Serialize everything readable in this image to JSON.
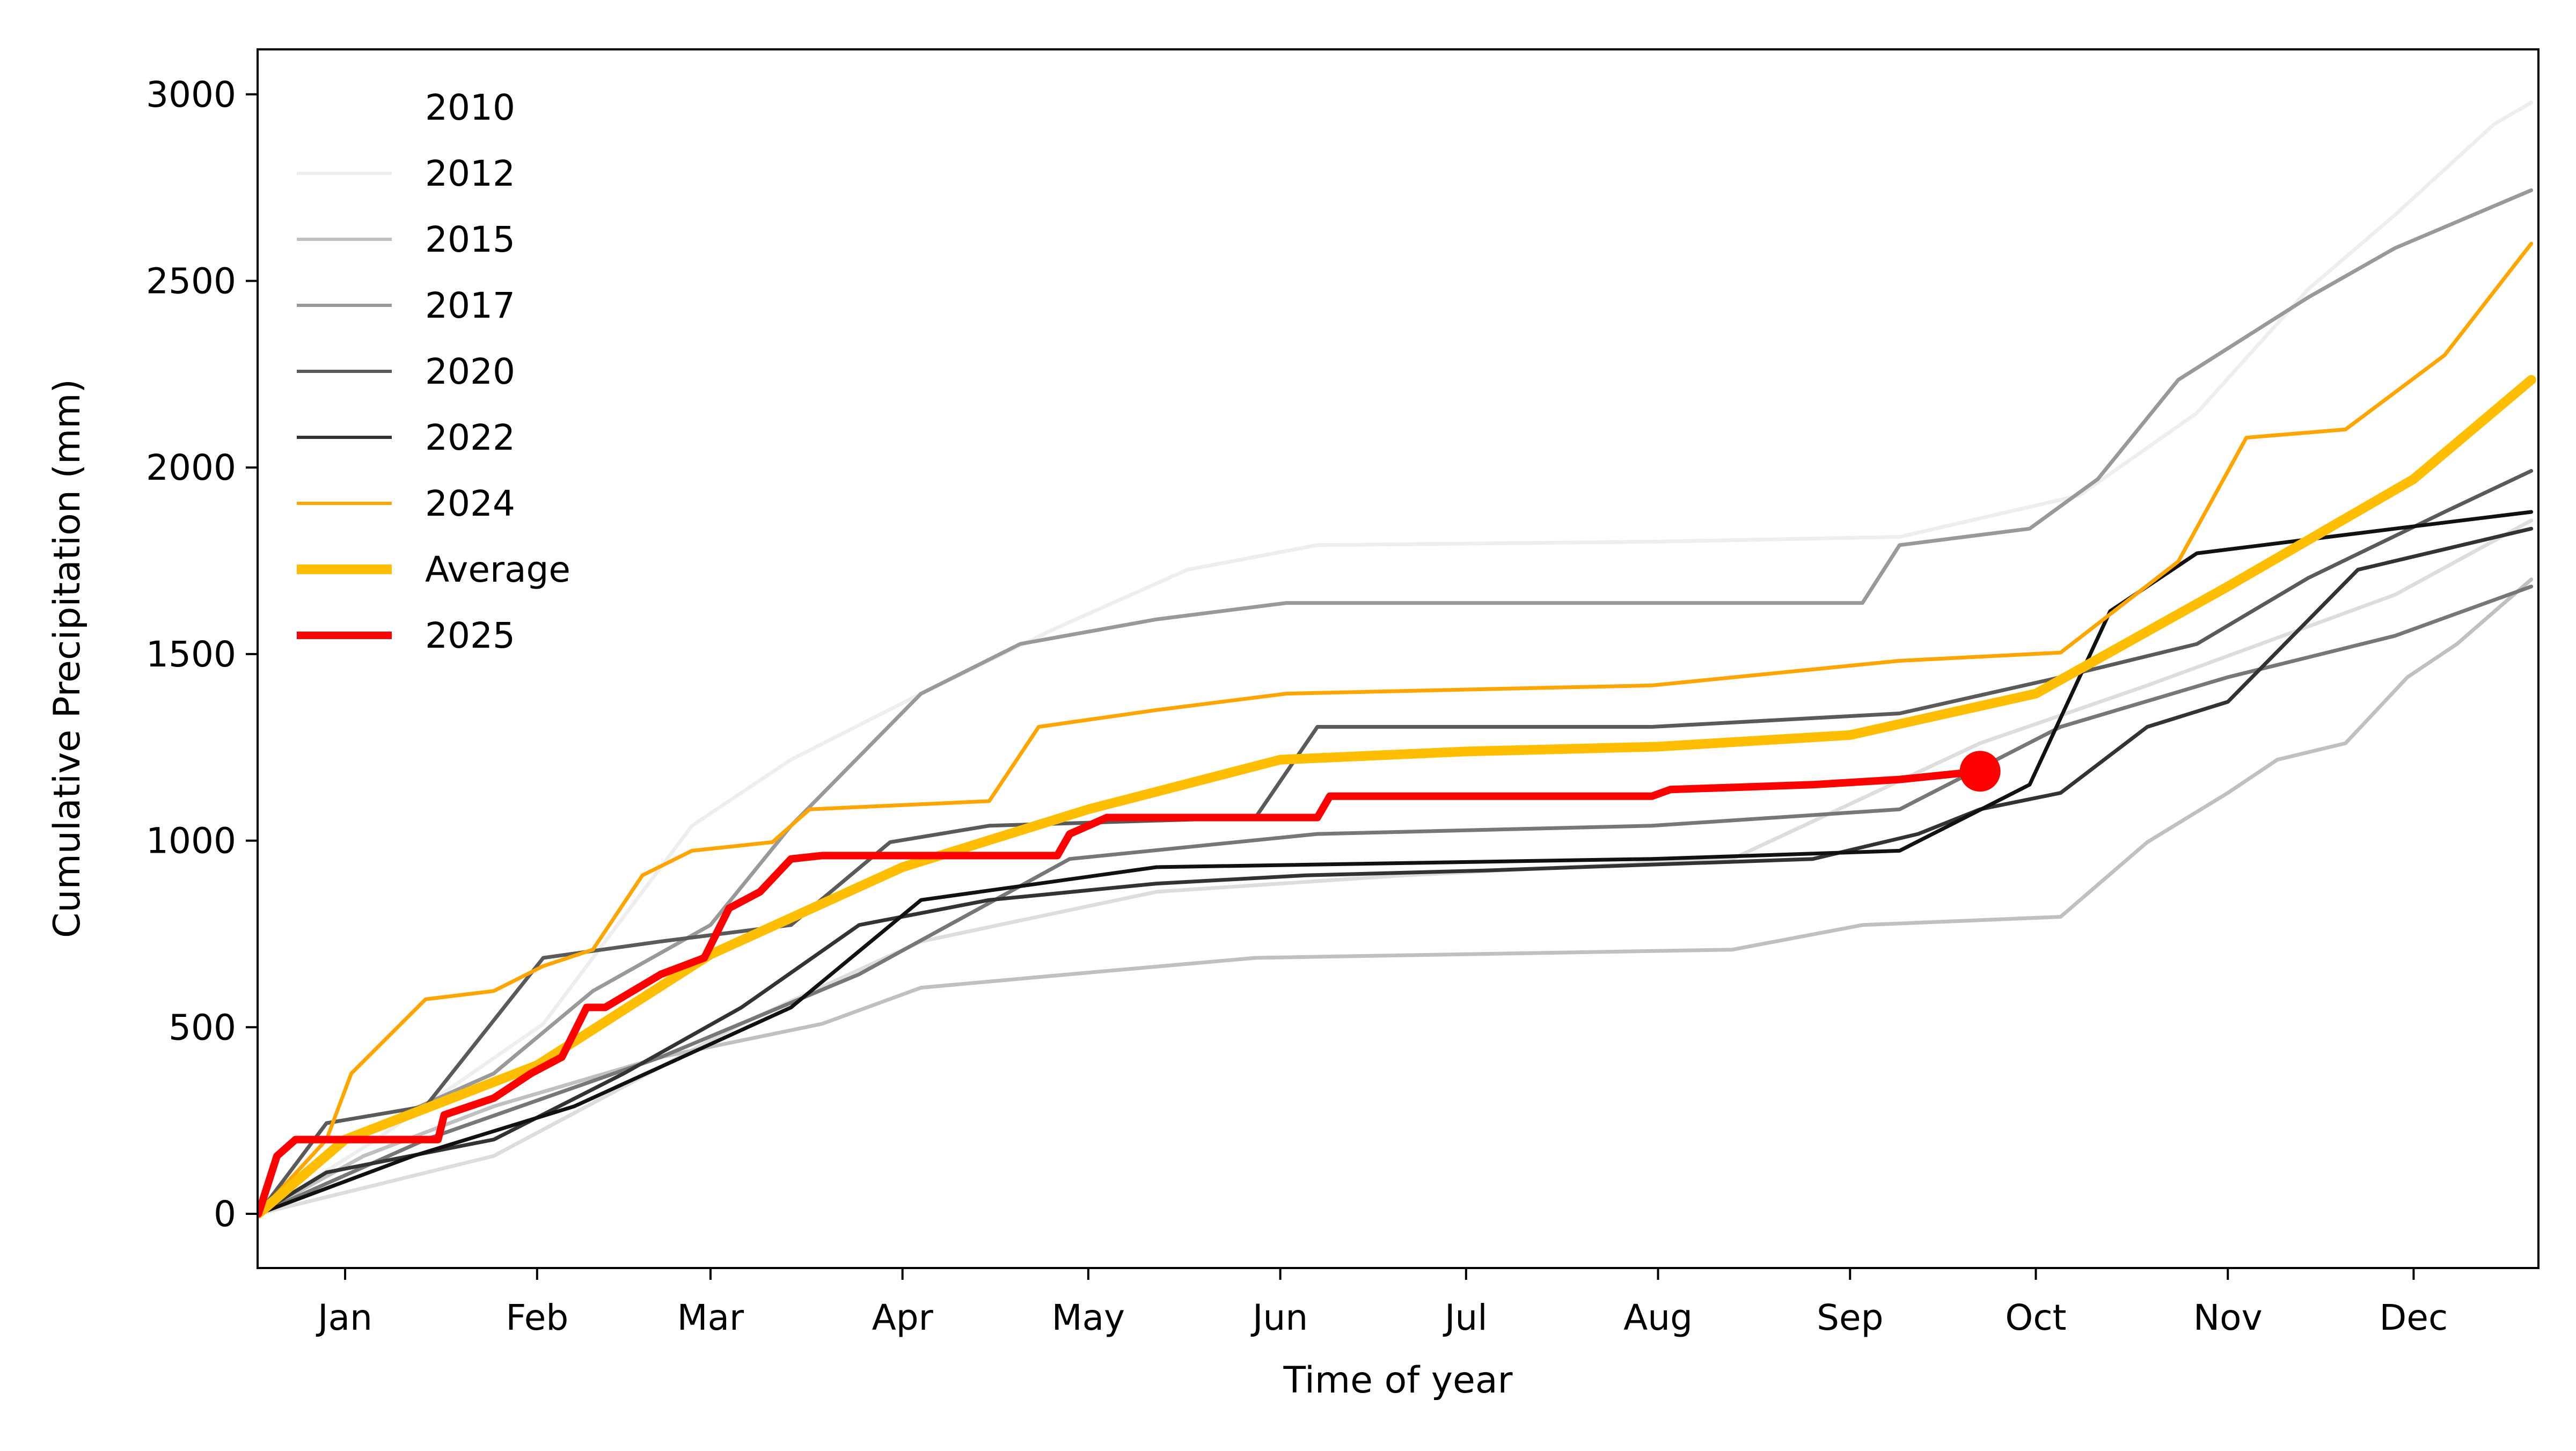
{
  "chart_data": {
    "type": "line",
    "title": "",
    "xlabel": "Time of year",
    "ylabel": "Cumulative Precipitation (mm)",
    "ylim": [
      -146,
      3120
    ],
    "xlim": [
      "Jan 01",
      "Dec 31"
    ],
    "x_ticks": [
      "Jan 15",
      "Feb 15",
      "Mar 15",
      "Apr 15",
      "May 15",
      "Jun 15",
      "Jul 15",
      "Aug 15",
      "Sep 15",
      "Oct 15",
      "Nov 15",
      "Dec 15"
    ],
    "x_tick_labels": [
      "Jan",
      "Feb",
      "Mar",
      "Apr",
      "May",
      "Jun",
      "Jul",
      "Aug",
      "Sep",
      "Oct",
      "Nov",
      "Dec"
    ],
    "y_ticks": [
      0,
      500,
      1000,
      1500,
      2000,
      2500,
      3000
    ],
    "y_tick_labels": [
      "0",
      "500",
      "1000",
      "1500",
      "2000",
      "2500",
      "3000"
    ],
    "grid": false,
    "legend_placement": "upper-left",
    "series": [
      {
        "name": "2010",
        "color": "#ffffff",
        "width": "thin",
        "points": []
      },
      {
        "name": "2012",
        "color": "#eeeeee",
        "width": "thin",
        "points": [
          [
            "Jan 01",
            0
          ],
          [
            "Jan 20",
            199
          ],
          [
            "Feb 16",
            509
          ],
          [
            "Mar 12",
            1040
          ],
          [
            "Mar 28",
            1217
          ],
          [
            "Apr 18",
            1394
          ],
          [
            "May 10",
            1571
          ],
          [
            "May 31",
            1726
          ],
          [
            "Jun 21",
            1792
          ],
          [
            "Aug 14",
            1801
          ],
          [
            "Sep 23",
            1814
          ],
          [
            "Oct 22",
            1925
          ],
          [
            "Nov 10",
            2146
          ],
          [
            "Nov 28",
            2478
          ],
          [
            "Dec 12",
            2677
          ],
          [
            "Dec 28",
            2920
          ],
          [
            "Dec 31",
            2978
          ]
        ]
      },
      {
        "name": "",
        "color": "#dddddd",
        "width": "thin",
        "points": [
          [
            "Jan 01",
            0
          ],
          [
            "Feb 08",
            155
          ],
          [
            "Mar 20",
            509
          ],
          [
            "Apr 18",
            730
          ],
          [
            "May 26",
            863
          ],
          [
            "Jul 05",
            907
          ],
          [
            "Aug 27",
            951
          ],
          [
            "Oct 06",
            1261
          ],
          [
            "Nov 02",
            1416
          ],
          [
            "Dec 12",
            1659
          ],
          [
            "Dec 31",
            1858
          ]
        ]
      },
      {
        "name": "2015",
        "color": "#c0c0c0",
        "width": "thin",
        "points": [
          [
            "Jan 01",
            0
          ],
          [
            "Jan 18",
            155
          ],
          [
            "Feb 08",
            288
          ],
          [
            "Mar 07",
            420
          ],
          [
            "Apr 02",
            509
          ],
          [
            "Apr 18",
            606
          ],
          [
            "May 12",
            642
          ],
          [
            "Jun 11",
            686
          ],
          [
            "Aug 27",
            708
          ],
          [
            "Sep 17",
            774
          ],
          [
            "Oct 19",
            796
          ],
          [
            "Nov 02",
            996
          ],
          [
            "Nov 15",
            1128
          ],
          [
            "Nov 23",
            1217
          ],
          [
            "Dec 04",
            1261
          ],
          [
            "Dec 14",
            1438
          ],
          [
            "Dec 22",
            1527
          ],
          [
            "Dec 31",
            1700
          ]
        ]
      },
      {
        "name": "2017",
        "color": "#999999",
        "width": "thin",
        "points": [
          [
            "Jan 01",
            0
          ],
          [
            "Jan 15",
            199
          ],
          [
            "Feb 08",
            376
          ],
          [
            "Feb 24",
            597
          ],
          [
            "Mar 15",
            774
          ],
          [
            "Mar 28",
            1040
          ],
          [
            "Apr 18",
            1394
          ],
          [
            "May 04",
            1527
          ],
          [
            "May 26",
            1593
          ],
          [
            "Jun 16",
            1637
          ],
          [
            "Sep 17",
            1637
          ],
          [
            "Sep 23",
            1792
          ],
          [
            "Oct 14",
            1836
          ],
          [
            "Oct 25",
            1969
          ],
          [
            "Nov 07",
            2235
          ],
          [
            "Nov 28",
            2456
          ],
          [
            "Dec 12",
            2588
          ],
          [
            "Dec 31",
            2743
          ]
        ]
      },
      {
        "name": "",
        "color": "#777777",
        "width": "thin",
        "points": [
          [
            "Jan 01",
            0
          ],
          [
            "Jan 28",
            199
          ],
          [
            "Mar 07",
            420
          ],
          [
            "Apr 08",
            642
          ],
          [
            "May 12",
            951
          ],
          [
            "Jun 21",
            1018
          ],
          [
            "Aug 14",
            1040
          ],
          [
            "Sep 23",
            1084
          ],
          [
            "Oct 19",
            1305
          ],
          [
            "Nov 15",
            1438
          ],
          [
            "Dec 12",
            1549
          ],
          [
            "Dec 31",
            1681
          ]
        ]
      },
      {
        "name": "2020",
        "color": "#5a5a5a",
        "width": "thin",
        "points": [
          [
            "Jan 01",
            0
          ],
          [
            "Jan 12",
            243
          ],
          [
            "Jan 28",
            288
          ],
          [
            "Feb 16",
            686
          ],
          [
            "Mar 07",
            730
          ],
          [
            "Mar 28",
            774
          ],
          [
            "Apr 13",
            996
          ],
          [
            "Apr 29",
            1040
          ],
          [
            "Jun 11",
            1062
          ],
          [
            "Jun 21",
            1305
          ],
          [
            "Aug 14",
            1305
          ],
          [
            "Sep 23",
            1341
          ],
          [
            "Oct 19",
            1438
          ],
          [
            "Nov 10",
            1527
          ],
          [
            "Nov 28",
            1704
          ],
          [
            "Dec 20",
            1881
          ],
          [
            "Dec 31",
            1991
          ]
        ]
      },
      {
        "name": "2022",
        "color": "#333333",
        "width": "thin",
        "points": [
          [
            "Jan 01",
            0
          ],
          [
            "Jan 12",
            111
          ],
          [
            "Feb 08",
            199
          ],
          [
            "Mar 01",
            376
          ],
          [
            "Mar 20",
            553
          ],
          [
            "Apr 08",
            774
          ],
          [
            "Apr 29",
            841
          ],
          [
            "May 26",
            885
          ],
          [
            "Jun 19",
            907
          ],
          [
            "Jul 18",
            920
          ],
          [
            "Sep 09",
            951
          ],
          [
            "Sep 26",
            1018
          ],
          [
            "Oct 06",
            1084
          ],
          [
            "Oct 19",
            1128
          ],
          [
            "Nov 02",
            1305
          ],
          [
            "Nov 15",
            1372
          ],
          [
            "Dec 06",
            1726
          ],
          [
            "Dec 31",
            1836
          ]
        ]
      },
      {
        "name": "",
        "color": "#111111",
        "width": "thin",
        "points": [
          [
            "Jan 01",
            0
          ],
          [
            "Jan 26",
            155
          ],
          [
            "Feb 21",
            288
          ],
          [
            "Mar 28",
            553
          ],
          [
            "Apr 18",
            841
          ],
          [
            "May 26",
            929
          ],
          [
            "Aug 14",
            951
          ],
          [
            "Sep 23",
            973
          ],
          [
            "Oct 14",
            1150
          ],
          [
            "Oct 27",
            1615
          ],
          [
            "Nov 10",
            1770
          ],
          [
            "Dec 12",
            1836
          ],
          [
            "Dec 31",
            1881
          ]
        ]
      },
      {
        "name": "2024",
        "color": "#ffa500",
        "width": "thin",
        "points": [
          [
            "Jan 01",
            0
          ],
          [
            "Jan 12",
            199
          ],
          [
            "Jan 16",
            376
          ],
          [
            "Jan 28",
            575
          ],
          [
            "Feb 08",
            597
          ],
          [
            "Feb 16",
            664
          ],
          [
            "Feb 24",
            708
          ],
          [
            "Mar 04",
            907
          ],
          [
            "Mar 12",
            973
          ],
          [
            "Mar 25",
            996
          ],
          [
            "Mar 31",
            1084
          ],
          [
            "Apr 29",
            1106
          ],
          [
            "May 07",
            1305
          ],
          [
            "May 26",
            1350
          ],
          [
            "Jun 16",
            1394
          ],
          [
            "Aug 14",
            1416
          ],
          [
            "Sep 23",
            1482
          ],
          [
            "Oct 19",
            1504
          ],
          [
            "Nov 07",
            1748
          ],
          [
            "Nov 18",
            2080
          ],
          [
            "Dec 04",
            2102
          ],
          [
            "Dec 20",
            2301
          ],
          [
            "Dec 31",
            2600
          ]
        ]
      },
      {
        "name": "Average",
        "color": "#ffbf00",
        "width": "thick",
        "points": [
          [
            "Jan 01",
            0
          ],
          [
            "Jan 15",
            199
          ],
          [
            "Feb 15",
            398
          ],
          [
            "Mar 15",
            695
          ],
          [
            "Apr 15",
            929
          ],
          [
            "May 15",
            1084
          ],
          [
            "Jun 15",
            1217
          ],
          [
            "Jul 15",
            1239
          ],
          [
            "Aug 15",
            1252
          ],
          [
            "Sep 15",
            1283
          ],
          [
            "Oct 15",
            1394
          ],
          [
            "Nov 15",
            1681
          ],
          [
            "Dec 15",
            1969
          ],
          [
            "Dec 31",
            2235
          ]
        ]
      },
      {
        "name": "2025",
        "color": "#ff0000",
        "width": "medium",
        "marker_at_end": true,
        "points": [
          [
            "Jan 01",
            0
          ],
          [
            "Jan 04",
            155
          ],
          [
            "Jan 07",
            199
          ],
          [
            "Jan 30",
            199
          ],
          [
            "Jan 31",
            265
          ],
          [
            "Feb 08",
            310
          ],
          [
            "Feb 14",
            376
          ],
          [
            "Feb 19",
            420
          ],
          [
            "Feb 23",
            553
          ],
          [
            "Feb 26",
            553
          ],
          [
            "Mar 07",
            642
          ],
          [
            "Mar 14",
            686
          ],
          [
            "Mar 18",
            819
          ],
          [
            "Mar 23",
            863
          ],
          [
            "Mar 28",
            951
          ],
          [
            "Apr 02",
            960
          ],
          [
            "May 10",
            960
          ],
          [
            "May 12",
            1018
          ],
          [
            "May 18",
            1062
          ],
          [
            "Jun 21",
            1062
          ],
          [
            "Jun 23",
            1119
          ],
          [
            "Aug 14",
            1119
          ],
          [
            "Aug 17",
            1137
          ],
          [
            "Sep 09",
            1150
          ],
          [
            "Sep 23",
            1164
          ],
          [
            "Oct 06",
            1186
          ]
        ]
      }
    ]
  }
}
